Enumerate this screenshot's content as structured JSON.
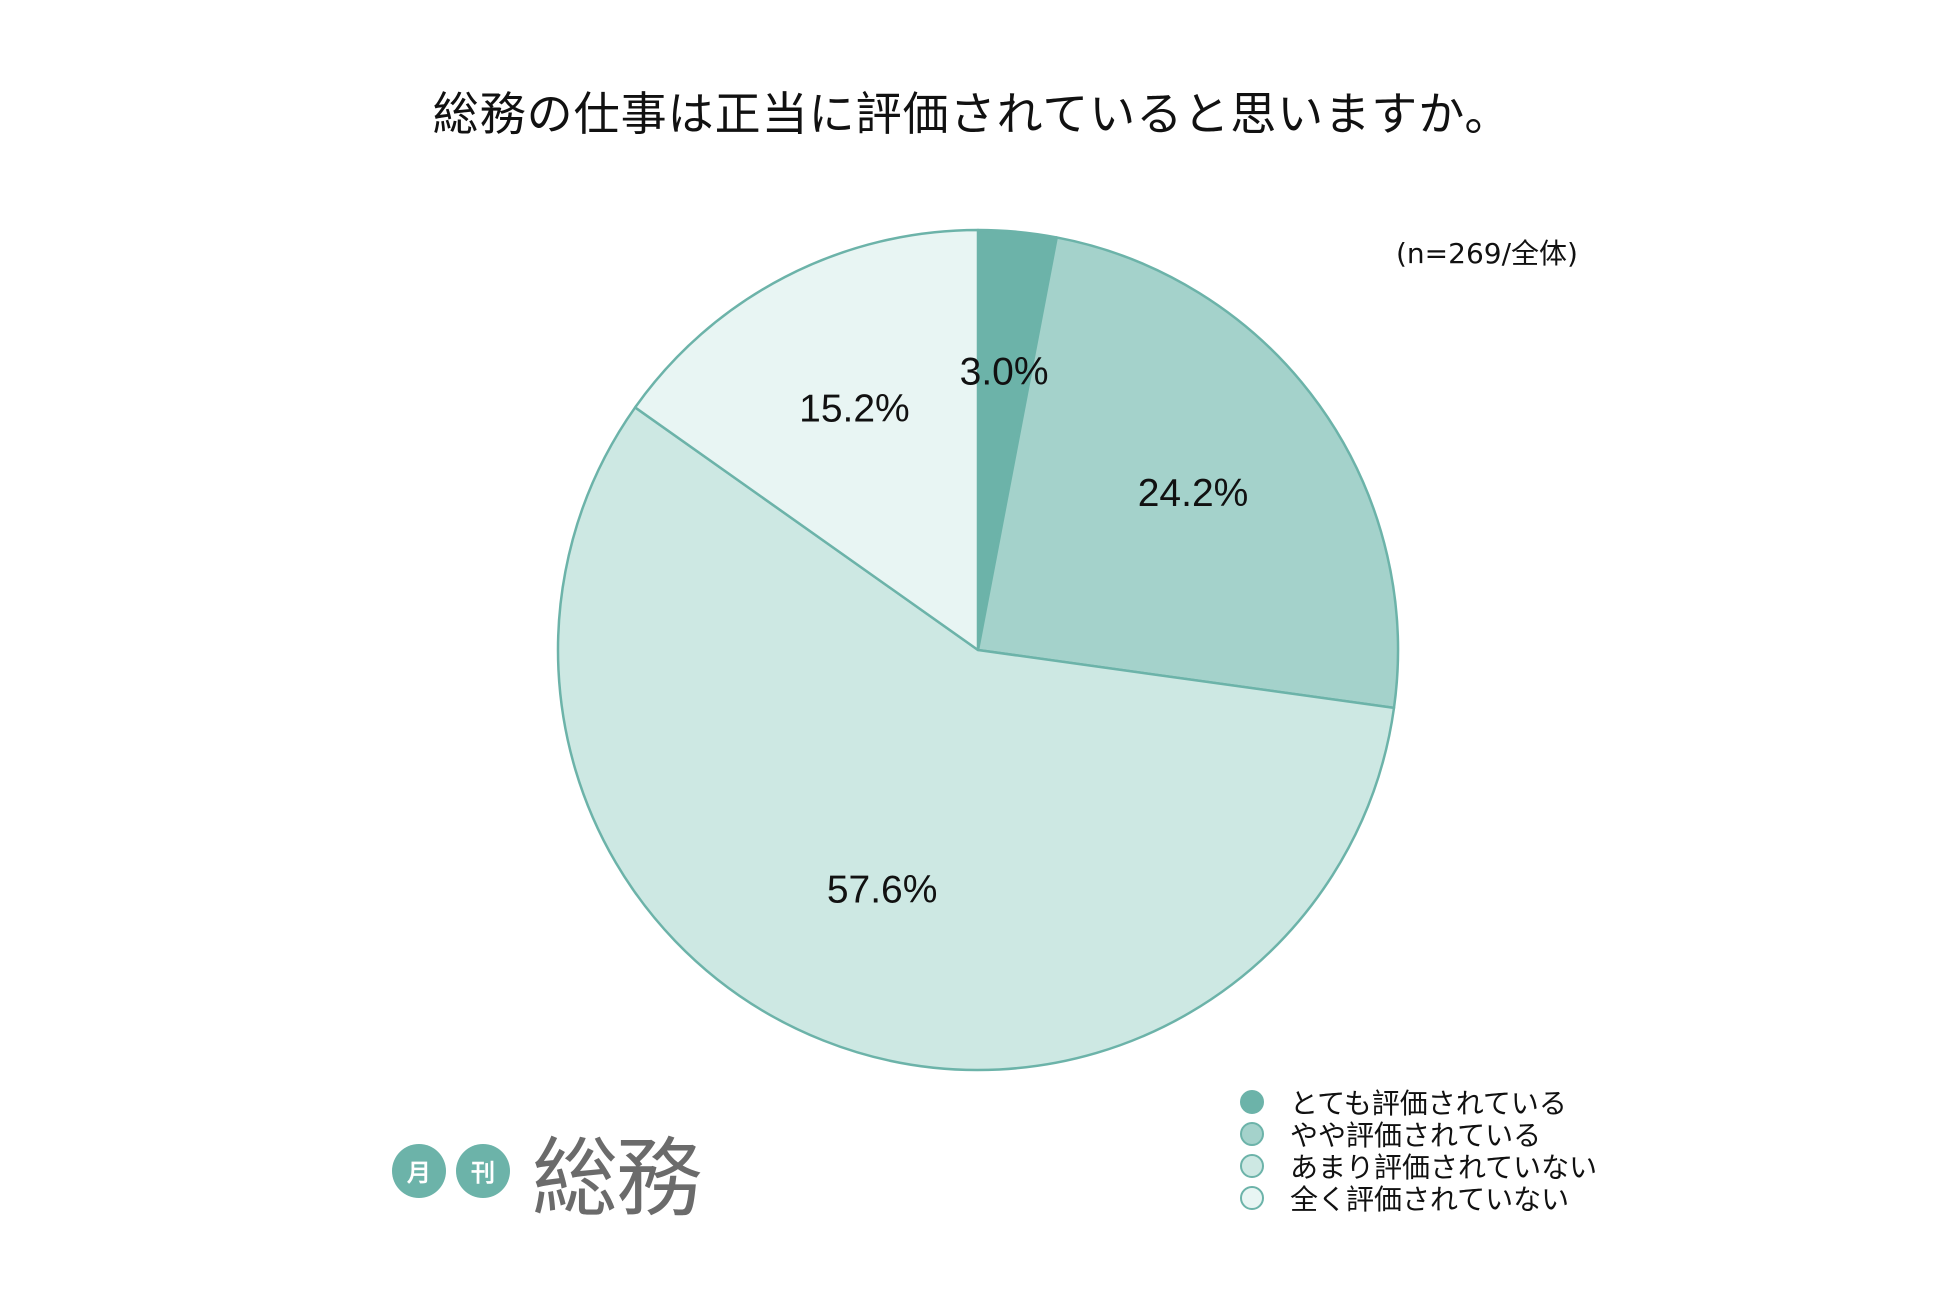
{
  "chart_data": {
    "type": "pie",
    "title": "総務の仕事は正当に評価されていると思いますか。",
    "note": "(n=269/全体)",
    "categories": [
      "とても評価されている",
      "やや評価されている",
      "あまり評価されていない",
      "全く評価されていない"
    ],
    "values": [
      3.0,
      24.2,
      57.6,
      15.2
    ],
    "value_labels": [
      "3.0%",
      "24.2%",
      "57.6%",
      "15.2%"
    ],
    "colors": [
      "#6cb3a9",
      "#a4d2cb",
      "#cde8e3",
      "#e8f5f3"
    ],
    "start_angle_deg": 0,
    "direction": "clockwise",
    "legend_position": "bottom-right"
  },
  "logo": {
    "badge1": "月",
    "badge2": "刊",
    "word": "総務"
  }
}
